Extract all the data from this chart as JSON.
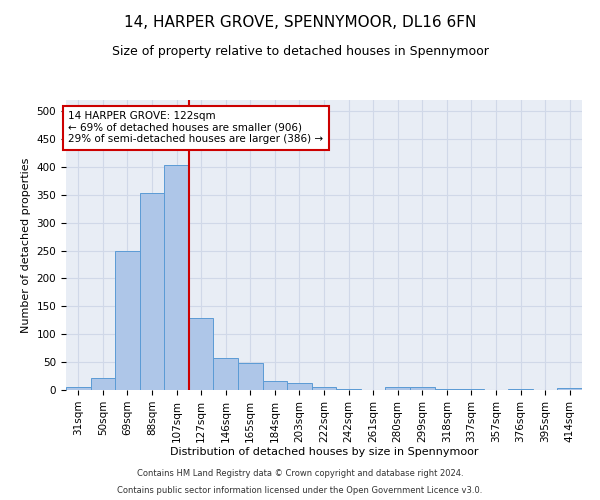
{
  "title": "14, HARPER GROVE, SPENNYMOOR, DL16 6FN",
  "subtitle": "Size of property relative to detached houses in Spennymoor",
  "xlabel": "Distribution of detached houses by size in Spennymoor",
  "ylabel": "Number of detached properties",
  "footnote1": "Contains HM Land Registry data © Crown copyright and database right 2024.",
  "footnote2": "Contains public sector information licensed under the Open Government Licence v3.0.",
  "bin_labels": [
    "31sqm",
    "50sqm",
    "69sqm",
    "88sqm",
    "107sqm",
    "127sqm",
    "146sqm",
    "165sqm",
    "184sqm",
    "203sqm",
    "222sqm",
    "242sqm",
    "261sqm",
    "280sqm",
    "299sqm",
    "318sqm",
    "337sqm",
    "357sqm",
    "376sqm",
    "395sqm",
    "414sqm"
  ],
  "bar_values": [
    5,
    22,
    250,
    353,
    403,
    130,
    57,
    49,
    16,
    12,
    5,
    2,
    0,
    6,
    5,
    2,
    2,
    0,
    1,
    0,
    3
  ],
  "bar_color": "#aec6e8",
  "bar_edge_color": "#5b9bd5",
  "property_line_x": 4.5,
  "property_line_color": "#cc0000",
  "annotation_text": "14 HARPER GROVE: 122sqm\n← 69% of detached houses are smaller (906)\n29% of semi-detached houses are larger (386) →",
  "annotation_box_color": "#cc0000",
  "ylim": [
    0,
    520
  ],
  "yticks": [
    0,
    50,
    100,
    150,
    200,
    250,
    300,
    350,
    400,
    450,
    500
  ],
  "grid_color": "#d0d8e8",
  "background_color": "#e8edf5",
  "title_fontsize": 11,
  "subtitle_fontsize": 9,
  "axis_label_fontsize": 8,
  "tick_fontsize": 7.5,
  "annotation_fontsize": 7.5,
  "footnote_fontsize": 6
}
